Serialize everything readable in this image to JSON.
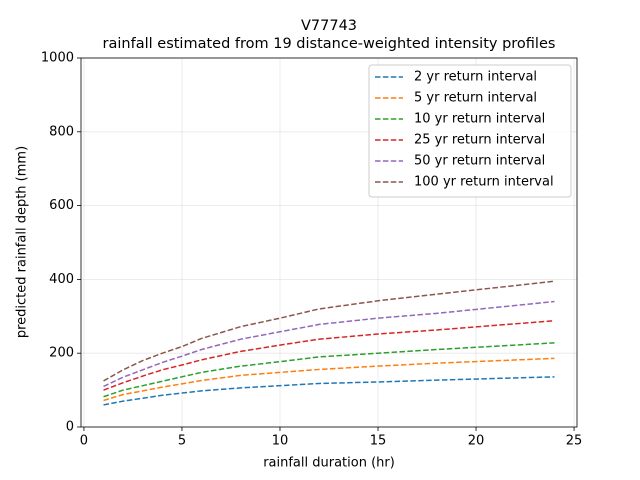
{
  "chart_data": {
    "type": "line",
    "title": "V77743",
    "subtitle": "rainfall estimated from 19 distance-weighted intensity profiles",
    "x_label": "rainfall duration (hr)",
    "y_label": "predicted rainfall depth (mm)",
    "x": [
      1,
      2,
      3,
      4,
      5,
      6,
      8,
      10,
      12,
      15,
      18,
      24
    ],
    "series": [
      {
        "name": "2 yr return interval",
        "color": "#1f77b4",
        "values": [
          60,
          70,
          78,
          86,
          92,
          98,
          106,
          112,
          118,
          122,
          127,
          136
        ]
      },
      {
        "name": "5 yr return interval",
        "color": "#ff7f0e",
        "values": [
          72,
          88,
          98,
          108,
          117,
          126,
          140,
          148,
          156,
          165,
          173,
          186
        ]
      },
      {
        "name": "10 yr return interval",
        "color": "#2ca02c",
        "values": [
          82,
          100,
          112,
          124,
          136,
          148,
          165,
          177,
          190,
          200,
          210,
          228
        ]
      },
      {
        "name": "25 yr return interval",
        "color": "#d62728",
        "values": [
          100,
          120,
          138,
          155,
          168,
          182,
          205,
          222,
          238,
          252,
          263,
          288
        ]
      },
      {
        "name": "50 yr return interval",
        "color": "#9467bd",
        "values": [
          110,
          135,
          155,
          175,
          192,
          210,
          238,
          258,
          278,
          295,
          308,
          340
        ]
      },
      {
        "name": "100 yr return interval",
        "color": "#8c564b",
        "values": [
          125,
          155,
          180,
          200,
          218,
          240,
          272,
          295,
          320,
          342,
          360,
          395
        ]
      }
    ],
    "xlim": [
      -0.15,
      25.15
    ],
    "xticks": [
      0,
      5,
      10,
      15,
      20,
      25
    ],
    "ylim": [
      0,
      1000
    ],
    "yticks": [
      0,
      200,
      400,
      600,
      800,
      1000
    ],
    "grid": true,
    "line_style": "dashed",
    "legend": "upper right"
  }
}
